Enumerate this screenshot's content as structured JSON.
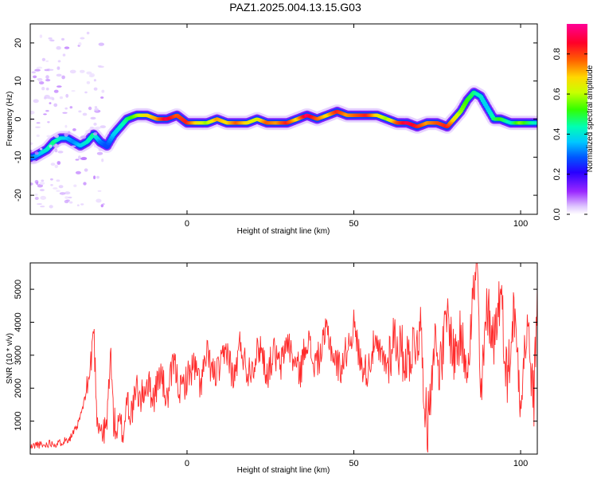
{
  "figure": {
    "title": "PAZ1.2025.004.13.15.G03"
  },
  "chart_data": [
    {
      "type": "heatmap",
      "xlabel": "Height of straight line (km)",
      "ylabel": "Frequency (Hz)",
      "xlim": [
        -47,
        105
      ],
      "ylim": [
        -25,
        25
      ],
      "xticks": [
        0,
        50,
        100
      ],
      "yticks": [
        20,
        10,
        0,
        -10,
        -20
      ],
      "colorbar": {
        "label": "Normalized spectral amplitude",
        "range": [
          0,
          0.95
        ],
        "ticks": [
          0.0,
          0.2,
          0.4,
          0.6,
          0.8
        ],
        "colormap": [
          "#ffffff",
          "#e0c8ff",
          "#9a28ff",
          "#2800ff",
          "#0058ff",
          "#00c8ff",
          "#00ffb4",
          "#32ff00",
          "#c8ff00",
          "#ffd800",
          "#ff6000",
          "#ff0028",
          "#ff0096"
        ]
      },
      "ridge": {
        "x": [
          -46,
          -44,
          -42,
          -40,
          -38,
          -36,
          -34,
          -32,
          -30,
          -28,
          -26,
          -24,
          -22,
          -20,
          -18,
          -15,
          -12,
          -9,
          -6,
          -3,
          0,
          3,
          6,
          9,
          12,
          15,
          18,
          21,
          24,
          27,
          30,
          33,
          36,
          39,
          42,
          45,
          48,
          51,
          54,
          57,
          60,
          63,
          66,
          69,
          72,
          75,
          78,
          80,
          82,
          84,
          86,
          88,
          90,
          92,
          94,
          97,
          100,
          103,
          105
        ],
        "freq": [
          -10,
          -9,
          -8,
          -6,
          -5,
          -5,
          -6,
          -7,
          -6,
          -4,
          -6,
          -7,
          -4,
          -2,
          0,
          1,
          1,
          0,
          0,
          1,
          -1,
          -1,
          -1,
          0,
          -1,
          -1,
          -1,
          0,
          -1,
          -1,
          -1,
          0,
          1,
          0,
          1,
          2,
          1,
          1,
          1,
          1,
          0,
          -1,
          -1,
          -2,
          -1,
          -1,
          -2,
          0,
          2,
          5,
          7,
          6,
          3,
          0,
          0,
          -1,
          -1,
          -1,
          -1
        ],
        "amplitude": [
          0.35,
          0.4,
          0.45,
          0.5,
          0.45,
          0.4,
          0.35,
          0.4,
          0.45,
          0.5,
          0.35,
          0.3,
          0.4,
          0.45,
          0.5,
          0.6,
          0.7,
          0.75,
          0.9,
          0.8,
          0.85,
          0.7,
          0.6,
          0.75,
          0.7,
          0.8,
          0.7,
          0.65,
          0.8,
          0.75,
          0.85,
          0.7,
          0.92,
          0.8,
          0.7,
          0.85,
          0.75,
          0.8,
          0.85,
          0.7,
          0.6,
          0.8,
          0.9,
          0.85,
          0.75,
          0.8,
          0.85,
          0.7,
          0.6,
          0.55,
          0.5,
          0.45,
          0.4,
          0.5,
          0.55,
          0.45,
          0.6,
          0.5,
          0.45
        ]
      }
    },
    {
      "type": "line",
      "xlabel": "Height of straight line (km)",
      "ylabel": "SNR (10 * v/v)",
      "xlim": [
        -47,
        105
      ],
      "ylim": [
        0,
        5800
      ],
      "xticks": [
        0,
        50,
        100
      ],
      "yticks": [
        1000,
        2000,
        3000,
        4000,
        5000
      ],
      "series": [
        {
          "color": "#ff2a2a",
          "x": [
            -47,
            -45,
            -43,
            -41,
            -39,
            -37,
            -35,
            -33,
            -31,
            -29,
            -28,
            -27,
            -26,
            -25,
            -24,
            -23,
            -22,
            -21,
            -20,
            -19,
            -18,
            -17,
            -16,
            -15,
            -14,
            -12,
            -10,
            -8,
            -6,
            -4,
            -2,
            0,
            2,
            4,
            6,
            8,
            10,
            12,
            14,
            16,
            18,
            20,
            22,
            24,
            26,
            28,
            30,
            32,
            34,
            36,
            38,
            40,
            42,
            44,
            46,
            48,
            50,
            52,
            54,
            56,
            58,
            60,
            62,
            64,
            66,
            68,
            70,
            72,
            74,
            76,
            78,
            80,
            82,
            84,
            86,
            87,
            88,
            90,
            92,
            94,
            96,
            98,
            100,
            102,
            104,
            105
          ],
          "y": [
            200,
            300,
            250,
            350,
            300,
            400,
            500,
            800,
            1500,
            2500,
            3900,
            1200,
            800,
            600,
            900,
            3200,
            1000,
            700,
            900,
            600,
            1800,
            1200,
            1500,
            2000,
            1600,
            2200,
            1700,
            2500,
            1600,
            2800,
            1900,
            2300,
            2700,
            2100,
            3000,
            2400,
            2600,
            3200,
            2200,
            3400,
            2500,
            2800,
            3300,
            2400,
            3100,
            2600,
            3500,
            2800,
            2500,
            3600,
            2700,
            3000,
            3800,
            2900,
            2600,
            3200,
            3900,
            2800,
            2500,
            3300,
            3000,
            2700,
            3600,
            3100,
            2900,
            3300,
            3800,
            600,
            3500,
            2600,
            4200,
            3000,
            3500,
            2800,
            5000,
            5800,
            1500,
            4500,
            3500,
            5000,
            2200,
            4400,
            1800,
            3900,
            1500,
            5200
          ]
        }
      ]
    }
  ]
}
